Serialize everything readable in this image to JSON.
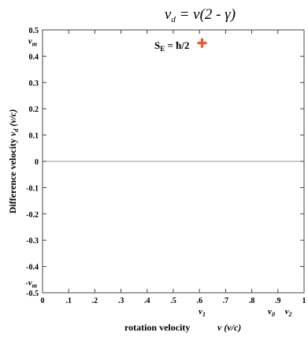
{
  "chart_data": {
    "type": "line",
    "title": "v_d = v(2 - γ)",
    "title_parts": {
      "vd": "v",
      "vd_sub": "d",
      "rest": " = v(2 - γ)"
    },
    "xlabel": "rotation velocity",
    "xlabel_unit": "v (v/c)",
    "ylabel": "Difference velocity",
    "ylabel_unit": "v",
    "ylabel_unit_sub": "d",
    "ylabel_unit_rest": " (v/c)",
    "xlim": [
      0,
      1
    ],
    "ylim": [
      -0.5,
      0.5
    ],
    "x_ticks": [
      {
        "value": 0,
        "label": "0"
      },
      {
        "value": 0.1,
        "label": ".1"
      },
      {
        "value": 0.2,
        "label": ".2"
      },
      {
        "value": 0.3,
        "label": ".3"
      },
      {
        "value": 0.4,
        "label": ".4"
      },
      {
        "value": 0.5,
        "label": ".5"
      },
      {
        "value": 0.6,
        "label": ".6"
      },
      {
        "value": 0.7,
        "label": ".7"
      },
      {
        "value": 0.8,
        "label": ".8"
      },
      {
        "value": 0.9,
        "label": ".9"
      },
      {
        "value": 1.0,
        "label": "1"
      }
    ],
    "y_ticks": [
      {
        "value": 0.5,
        "label": "0.5"
      },
      {
        "value": 0.4,
        "label": "0.4"
      },
      {
        "value": 0.3,
        "label": "0.3"
      },
      {
        "value": 0.2,
        "label": "0.2"
      },
      {
        "value": 0.1,
        "label": "0.1"
      },
      {
        "value": 0,
        "label": "0"
      },
      {
        "value": -0.1,
        "label": "-0.1"
      },
      {
        "value": -0.2,
        "label": "-0.2"
      },
      {
        "value": -0.3,
        "label": "-0.3"
      },
      {
        "value": -0.4,
        "label": "-0.4"
      },
      {
        "value": -0.5,
        "label": "-0.5"
      }
    ],
    "y_markers": [
      {
        "value": 0.46,
        "label": "v",
        "sub": "m"
      },
      {
        "value": -0.46,
        "label": "-v",
        "sub": "m"
      }
    ],
    "x_markers": [
      {
        "value": 0.61,
        "label": "v",
        "sub": "1"
      },
      {
        "value": 0.875,
        "label": "v",
        "sub": "0"
      },
      {
        "value": 0.94,
        "label": "v",
        "sub": "2"
      }
    ],
    "zero_line": true,
    "series": [
      {
        "type": "line",
        "x": [
          0,
          1
        ],
        "values": [
          0,
          0
        ],
        "color": "#999999"
      }
    ],
    "marker": {
      "x": 0.61,
      "y": 0.45,
      "symbol": "+",
      "color": "#ee5522"
    },
    "annotation": {
      "text_main": "S",
      "text_sub": "E",
      "text_rest": " = ħ/2"
    }
  }
}
